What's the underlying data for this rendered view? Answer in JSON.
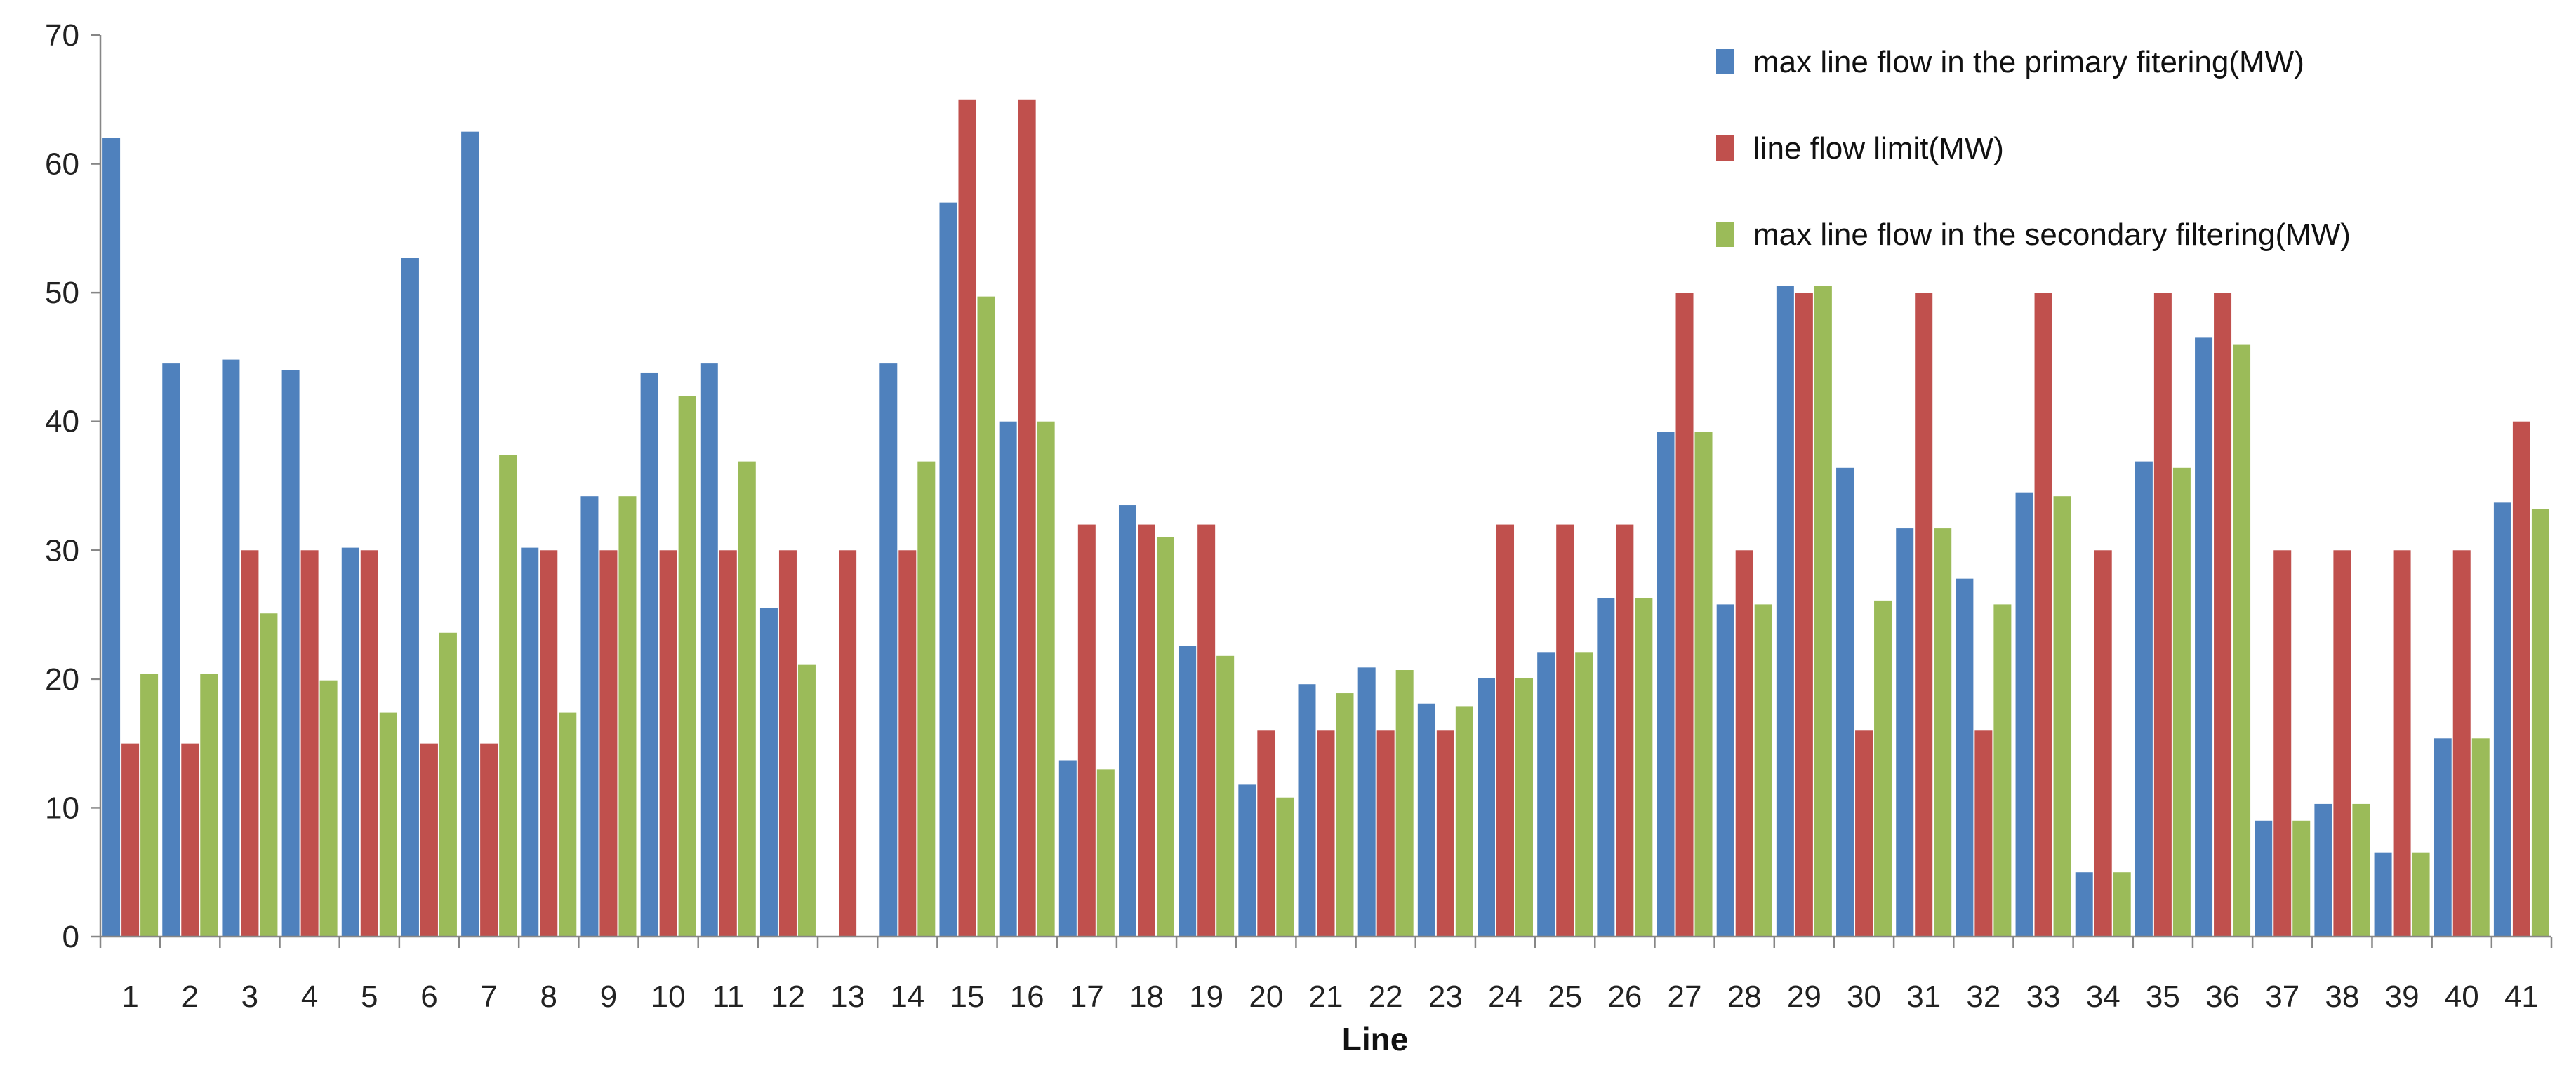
{
  "chart_data": {
    "type": "bar",
    "title": "",
    "xlabel": "Line",
    "ylabel": "",
    "ylim": [
      0,
      70
    ],
    "yticks": [
      0,
      10,
      20,
      30,
      40,
      50,
      60,
      70
    ],
    "grid": false,
    "legend_position": "top-right",
    "categories": [
      "1",
      "2",
      "3",
      "4",
      "5",
      "6",
      "7",
      "8",
      "9",
      "10",
      "11",
      "12",
      "13",
      "14",
      "15",
      "16",
      "17",
      "18",
      "19",
      "20",
      "21",
      "22",
      "23",
      "24",
      "25",
      "26",
      "27",
      "28",
      "29",
      "30",
      "31",
      "32",
      "33",
      "34",
      "35",
      "36",
      "37",
      "38",
      "39",
      "40",
      "41"
    ],
    "series": [
      {
        "name": "max line flow in the primary fitering(MW)",
        "color": "#4F81BD",
        "values": [
          62,
          44.5,
          44.8,
          44,
          30.2,
          52.7,
          62.5,
          30.2,
          34.2,
          43.8,
          44.5,
          25.5,
          0,
          44.5,
          57,
          40,
          13.7,
          33.5,
          22.6,
          11.8,
          19.6,
          20.9,
          18.1,
          20.1,
          22.1,
          26.3,
          39.2,
          25.8,
          50.5,
          36.4,
          31.7,
          27.8,
          34.5,
          5,
          36.9,
          46.5,
          9,
          10.3,
          6.5,
          15.4,
          33.7
        ]
      },
      {
        "name": "line flow limit(MW)",
        "color": "#C0504D",
        "values": [
          15,
          15,
          30,
          30,
          30,
          15,
          15,
          30,
          30,
          30,
          30,
          30,
          30,
          30,
          65,
          65,
          32,
          32,
          32,
          16,
          16,
          16,
          16,
          32,
          32,
          32,
          50,
          30,
          50,
          16,
          50,
          16,
          50,
          30,
          50,
          50,
          30,
          30,
          30,
          30,
          40
        ]
      },
      {
        "name": "max line flow in the secondary filtering(MW)",
        "color": "#9BBB59",
        "values": [
          20.4,
          20.4,
          25.1,
          19.9,
          17.4,
          23.6,
          37.4,
          17.4,
          34.2,
          42,
          36.9,
          21.1,
          0,
          36.9,
          49.7,
          40,
          13,
          31,
          21.8,
          10.8,
          18.9,
          20.7,
          17.9,
          20.1,
          22.1,
          26.3,
          39.2,
          25.8,
          50.5,
          26.1,
          31.7,
          25.8,
          34.2,
          5,
          36.4,
          46,
          9,
          10.3,
          6.5,
          15.4,
          33.2
        ]
      }
    ]
  }
}
